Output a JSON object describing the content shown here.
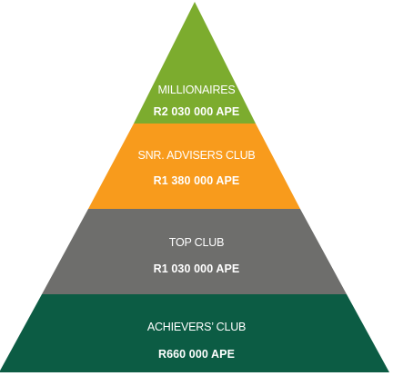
{
  "colors": {
    "millionaires": "#7cac2e",
    "snr_advisers": "#f89b1c",
    "top_club": "#6e6e6c",
    "achievers": "#0c5c44",
    "text": "#ffffff"
  },
  "tiers": {
    "millionaires": {
      "name": "MILLIONAIRES",
      "value": "R2 030 000 APE"
    },
    "snr_advisers": {
      "name": "SNR. ADVISERS CLUB",
      "value": "R1 380 000 APE"
    },
    "top_club": {
      "name": "TOP CLUB",
      "value": "R1 030 000 APE"
    },
    "achievers": {
      "name": "ACHIEVERS’ CLUB",
      "value": "R660 000 APE"
    }
  }
}
